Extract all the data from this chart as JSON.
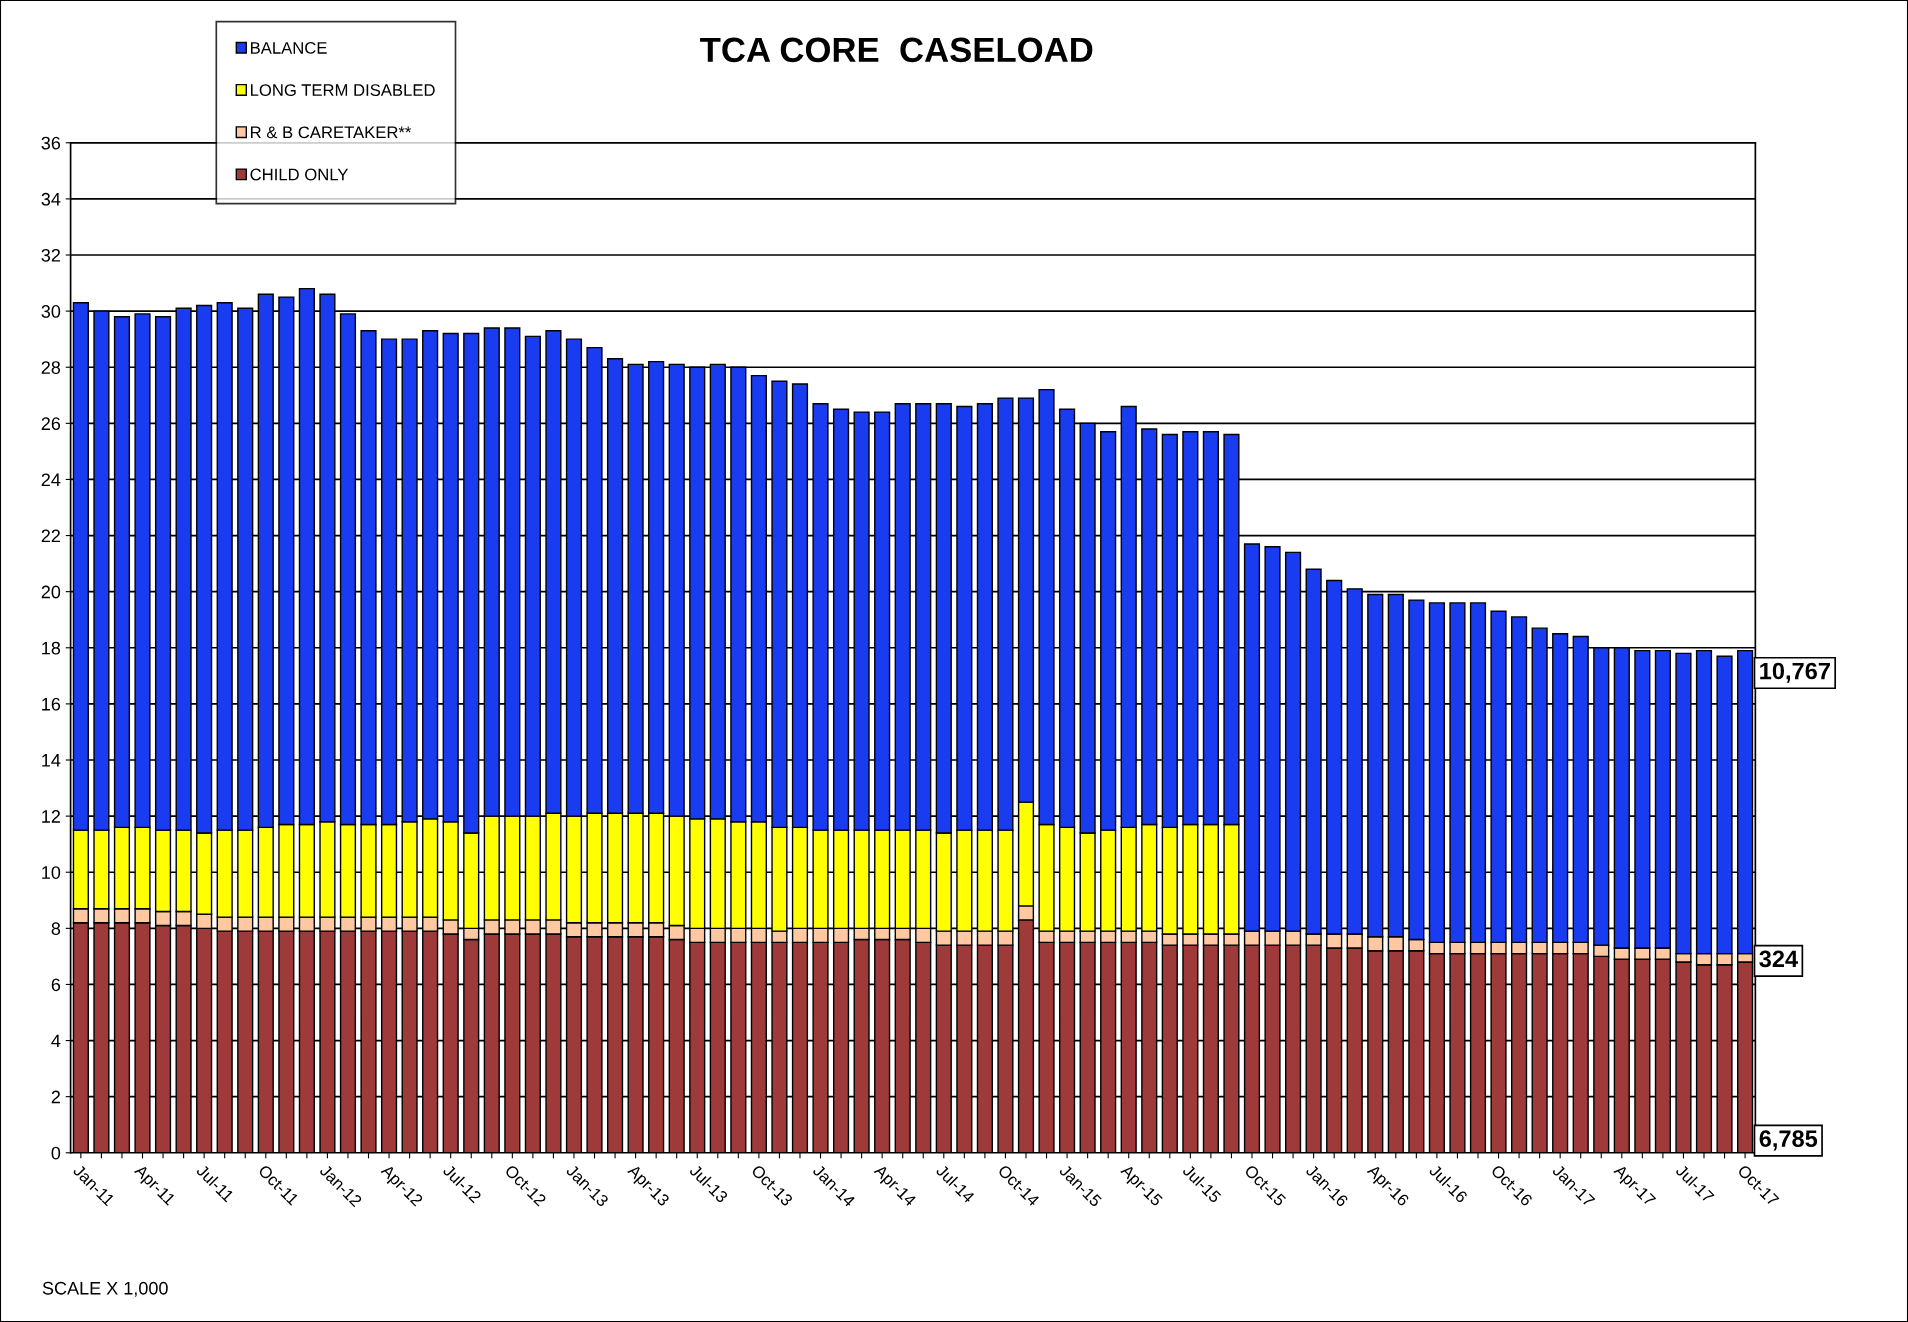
{
  "chart_data": {
    "type": "bar",
    "stacked": true,
    "title": "TCA CORE  CASELOAD",
    "categories": [
      "Jan-11",
      null,
      null,
      "Apr-11",
      null,
      null,
      "Jul-11",
      null,
      null,
      "Oct-11",
      null,
      null,
      "Jan-12",
      null,
      null,
      "Apr-12",
      null,
      null,
      "Jul-12",
      null,
      null,
      "Oct-12",
      null,
      null,
      "Jan-13",
      null,
      null,
      "Apr-13",
      null,
      null,
      "Jul-13",
      null,
      null,
      "Oct-13",
      null,
      null,
      "Jan-14",
      null,
      null,
      "Apr-14",
      null,
      null,
      "Jul-14",
      null,
      null,
      "Oct-14",
      null,
      null,
      "Jan-15",
      null,
      null,
      "Apr-15",
      null,
      null,
      "Jul-15",
      null,
      null,
      "Oct-15",
      null,
      null,
      "Jan-16",
      null,
      null,
      "Apr-16",
      null,
      null,
      "Jul-16",
      null,
      null,
      "Oct-16",
      null,
      null,
      "Jan-17",
      null,
      null,
      "Apr-17",
      null,
      null,
      "Jul-17",
      null,
      null,
      "Oct-17"
    ],
    "series": [
      {
        "name": "CHILD ONLY",
        "color": "#9e3a3a",
        "values": [
          8.2,
          8.2,
          8.2,
          8.2,
          8.1,
          8.1,
          8.0,
          7.9,
          7.9,
          7.9,
          7.9,
          7.9,
          7.9,
          7.9,
          7.9,
          7.9,
          7.9,
          7.9,
          7.8,
          7.6,
          7.8,
          7.8,
          7.8,
          7.8,
          7.7,
          7.7,
          7.7,
          7.7,
          7.7,
          7.6,
          7.5,
          7.5,
          7.5,
          7.5,
          7.5,
          7.5,
          7.5,
          7.5,
          7.6,
          7.6,
          7.6,
          7.5,
          7.4,
          7.4,
          7.4,
          7.4,
          8.3,
          7.5,
          7.5,
          7.5,
          7.5,
          7.5,
          7.5,
          7.4,
          7.4,
          7.4,
          7.4,
          7.4,
          7.4,
          7.4,
          7.4,
          7.3,
          7.3,
          7.2,
          7.2,
          7.2,
          7.1,
          7.1,
          7.1,
          7.1,
          7.1,
          7.1,
          7.1,
          7.1,
          7.0,
          6.9,
          6.9,
          6.9,
          6.8,
          6.7,
          6.7,
          6.8
        ]
      },
      {
        "name": "R & B CARETAKER**",
        "color": "#ffc8a0",
        "values": [
          0.5,
          0.5,
          0.5,
          0.5,
          0.5,
          0.5,
          0.5,
          0.5,
          0.5,
          0.5,
          0.5,
          0.5,
          0.5,
          0.5,
          0.5,
          0.5,
          0.5,
          0.5,
          0.5,
          0.4,
          0.5,
          0.5,
          0.5,
          0.5,
          0.5,
          0.5,
          0.5,
          0.5,
          0.5,
          0.5,
          0.5,
          0.5,
          0.5,
          0.5,
          0.4,
          0.5,
          0.5,
          0.5,
          0.4,
          0.4,
          0.4,
          0.5,
          0.5,
          0.5,
          0.5,
          0.5,
          0.5,
          0.4,
          0.4,
          0.4,
          0.4,
          0.4,
          0.4,
          0.4,
          0.4,
          0.4,
          0.4,
          0.5,
          0.5,
          0.5,
          0.4,
          0.5,
          0.5,
          0.5,
          0.5,
          0.4,
          0.4,
          0.4,
          0.4,
          0.4,
          0.4,
          0.4,
          0.4,
          0.4,
          0.4,
          0.4,
          0.4,
          0.4,
          0.3,
          0.4,
          0.4,
          0.3
        ]
      },
      {
        "name": "LONG TERM DISABLED",
        "color": "#ffff00",
        "values": [
          2.8,
          2.8,
          2.9,
          2.9,
          2.9,
          2.9,
          2.9,
          3.1,
          3.1,
          3.2,
          3.3,
          3.3,
          3.4,
          3.3,
          3.3,
          3.3,
          3.4,
          3.5,
          3.5,
          3.4,
          3.7,
          3.7,
          3.7,
          3.8,
          3.8,
          3.9,
          3.9,
          3.9,
          3.9,
          3.9,
          3.9,
          3.9,
          3.8,
          3.8,
          3.7,
          3.6,
          3.5,
          3.5,
          3.5,
          3.5,
          3.5,
          3.5,
          3.5,
          3.6,
          3.6,
          3.6,
          3.7,
          3.8,
          3.7,
          3.5,
          3.6,
          3.7,
          3.8,
          3.8,
          3.9,
          3.9,
          3.9,
          null,
          null,
          null,
          null,
          null,
          null,
          null,
          null,
          null,
          null,
          null,
          null,
          null,
          null,
          null,
          null,
          null,
          null,
          null,
          null,
          null,
          null,
          null,
          null,
          null
        ]
      },
      {
        "name": "BALANCE",
        "color": "#1a3cf0",
        "values": [
          18.8,
          18.5,
          18.2,
          18.3,
          18.3,
          18.6,
          18.8,
          18.8,
          18.6,
          19.0,
          18.8,
          19.1,
          18.8,
          18.2,
          17.6,
          17.3,
          17.2,
          17.4,
          17.4,
          17.8,
          17.4,
          17.4,
          17.1,
          17.2,
          17.0,
          16.6,
          16.2,
          16.0,
          16.1,
          16.1,
          16.1,
          16.2,
          16.2,
          15.9,
          15.9,
          15.8,
          15.2,
          15.0,
          14.9,
          14.9,
          15.2,
          15.2,
          15.3,
          15.1,
          15.2,
          15.4,
          14.4,
          15.5,
          14.9,
          14.6,
          14.2,
          15.0,
          14.1,
          14.0,
          14.0,
          14.0,
          13.9,
          13.8,
          13.7,
          13.5,
          13.0,
          12.6,
          12.3,
          12.2,
          12.2,
          12.1,
          12.1,
          12.1,
          12.1,
          11.8,
          11.6,
          11.2,
          11.0,
          10.9,
          10.6,
          10.7,
          10.6,
          10.6,
          10.7,
          10.8,
          10.6,
          10.8
        ]
      }
    ],
    "ylim": [
      0,
      36
    ],
    "yticks": [
      0,
      2,
      4,
      6,
      8,
      10,
      12,
      14,
      16,
      18,
      20,
      22,
      24,
      26,
      28,
      30,
      32,
      34,
      36
    ],
    "grid": "y",
    "legend": "top left",
    "annotations": [
      "10,767",
      "324",
      "6,785",
      "SCALE X 1,000"
    ]
  }
}
